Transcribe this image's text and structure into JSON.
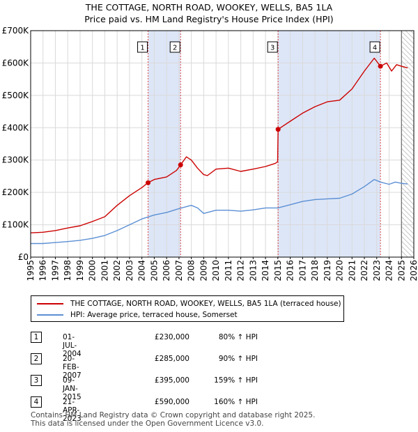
{
  "title_line1": "THE COTTAGE, NORTH ROAD, WOOKEY, WELLS, BA5 1LA",
  "title_line2": "Price paid vs. HM Land Registry's House Price Index (HPI)",
  "colors": {
    "red": "#cc0000",
    "blue": "#5b8fd4",
    "band": "#dde6f7",
    "grid": "#d9d9d9"
  },
  "chart_data": {
    "type": "line",
    "title": "Price paid vs. HM Land Registry's House Price Index (HPI)",
    "xlabel": "",
    "ylabel": "",
    "xlim": [
      1995,
      2026
    ],
    "ylim": [
      0,
      700000
    ],
    "y_ticks": [
      0,
      100000,
      200000,
      300000,
      400000,
      500000,
      600000,
      700000
    ],
    "y_tick_labels": [
      "£0",
      "£100K",
      "£200K",
      "£300K",
      "£400K",
      "£500K",
      "£600K",
      "£700K"
    ],
    "x_ticks": [
      1995,
      1996,
      1997,
      1998,
      1999,
      2000,
      2001,
      2002,
      2003,
      2004,
      2005,
      2006,
      2007,
      2008,
      2009,
      2010,
      2011,
      2012,
      2013,
      2014,
      2015,
      2016,
      2017,
      2018,
      2019,
      2020,
      2021,
      2022,
      2023,
      2024,
      2025,
      2026
    ],
    "x_tick_labels": [
      "1995",
      "1996",
      "1997",
      "1998",
      "1999",
      "2000",
      "2001",
      "2002",
      "2003",
      "2004",
      "2005",
      "2006",
      "2007",
      "2008",
      "2009",
      "2010",
      "2011",
      "2012",
      "2013",
      "2014",
      "2015",
      "2016",
      "2017",
      "2018",
      "2019",
      "2020",
      "2021",
      "2022",
      "2023",
      "2024",
      "2025",
      "2026"
    ],
    "grid": true,
    "series": [
      {
        "name": "THE COTTAGE, NORTH ROAD, WOOKEY, WELLS, BA5 1LA (terraced house)",
        "color": "#cc0000",
        "x": [
          1995.0,
          1996.0,
          1997.0,
          1998.0,
          1999.0,
          2000.0,
          2001.0,
          2002.0,
          2003.0,
          2004.0,
          2004.5,
          2005.0,
          2006.0,
          2006.8,
          2007.13,
          2007.6,
          2008.0,
          2008.5,
          2009.0,
          2009.3,
          2010.0,
          2011.0,
          2012.0,
          2013.0,
          2014.0,
          2014.8,
          2014.98,
          2015.02,
          2016.0,
          2017.0,
          2018.0,
          2019.0,
          2020.0,
          2021.0,
          2022.0,
          2022.8,
          2023.3,
          2023.8,
          2024.2,
          2024.6,
          2025.0,
          2025.5
        ],
        "y": [
          75000,
          77000,
          82000,
          90000,
          97000,
          110000,
          125000,
          160000,
          190000,
          215000,
          230000,
          240000,
          248000,
          268000,
          285000,
          310000,
          300000,
          275000,
          255000,
          252000,
          272000,
          275000,
          265000,
          272000,
          280000,
          290000,
          295000,
          395000,
          420000,
          445000,
          465000,
          480000,
          485000,
          520000,
          575000,
          615000,
          590000,
          600000,
          575000,
          595000,
          590000,
          585000
        ]
      },
      {
        "name": "HPI: Average price, terraced house, Somerset",
        "color": "#5b8fd4",
        "x": [
          1995.0,
          1996.0,
          1997.0,
          1998.0,
          1999.0,
          2000.0,
          2001.0,
          2002.0,
          2003.0,
          2004.0,
          2005.0,
          2006.0,
          2007.0,
          2008.0,
          2008.5,
          2009.0,
          2010.0,
          2011.0,
          2012.0,
          2013.0,
          2014.0,
          2015.0,
          2016.0,
          2017.0,
          2018.0,
          2019.0,
          2020.0,
          2021.0,
          2022.0,
          2022.8,
          2023.3,
          2024.0,
          2024.5,
          2025.0,
          2025.5
        ],
        "y": [
          42000,
          42000,
          45000,
          48000,
          52000,
          58000,
          67000,
          82000,
          100000,
          118000,
          130000,
          138000,
          150000,
          160000,
          152000,
          135000,
          145000,
          145000,
          142000,
          146000,
          152000,
          152000,
          162000,
          172000,
          178000,
          180000,
          182000,
          195000,
          218000,
          240000,
          232000,
          225000,
          232000,
          228000,
          226000
        ]
      }
    ],
    "sales": [
      {
        "num": "1",
        "year": 2004.5,
        "price": 230000
      },
      {
        "num": "2",
        "year": 2007.13,
        "price": 285000
      },
      {
        "num": "3",
        "year": 2015.02,
        "price": 395000
      },
      {
        "num": "4",
        "year": 2023.3,
        "price": 590000
      }
    ],
    "shaded_bands": [
      [
        2004.5,
        2007.13
      ],
      [
        2015.02,
        2023.3
      ]
    ],
    "forecast_start": 2025.0
  },
  "legend": {
    "red_label": "THE COTTAGE, NORTH ROAD, WOOKEY, WELLS, BA5 1LA (terraced house)",
    "blue_label": "HPI: Average price, terraced house, Somerset"
  },
  "sales_table": [
    {
      "num": "1",
      "date": "01-JUL-2004",
      "price": "£230,000",
      "hpi": "80% ↑ HPI"
    },
    {
      "num": "2",
      "date": "20-FEB-2007",
      "price": "£285,000",
      "hpi": "90% ↑ HPI"
    },
    {
      "num": "3",
      "date": "09-JAN-2015",
      "price": "£395,000",
      "hpi": "159% ↑ HPI"
    },
    {
      "num": "4",
      "date": "21-APR-2023",
      "price": "£590,000",
      "hpi": "160% ↑ HPI"
    }
  ],
  "footer_line1": "Contains HM Land Registry data © Crown copyright and database right 2025.",
  "footer_line2": "This data is licensed under the Open Government Licence v3.0."
}
